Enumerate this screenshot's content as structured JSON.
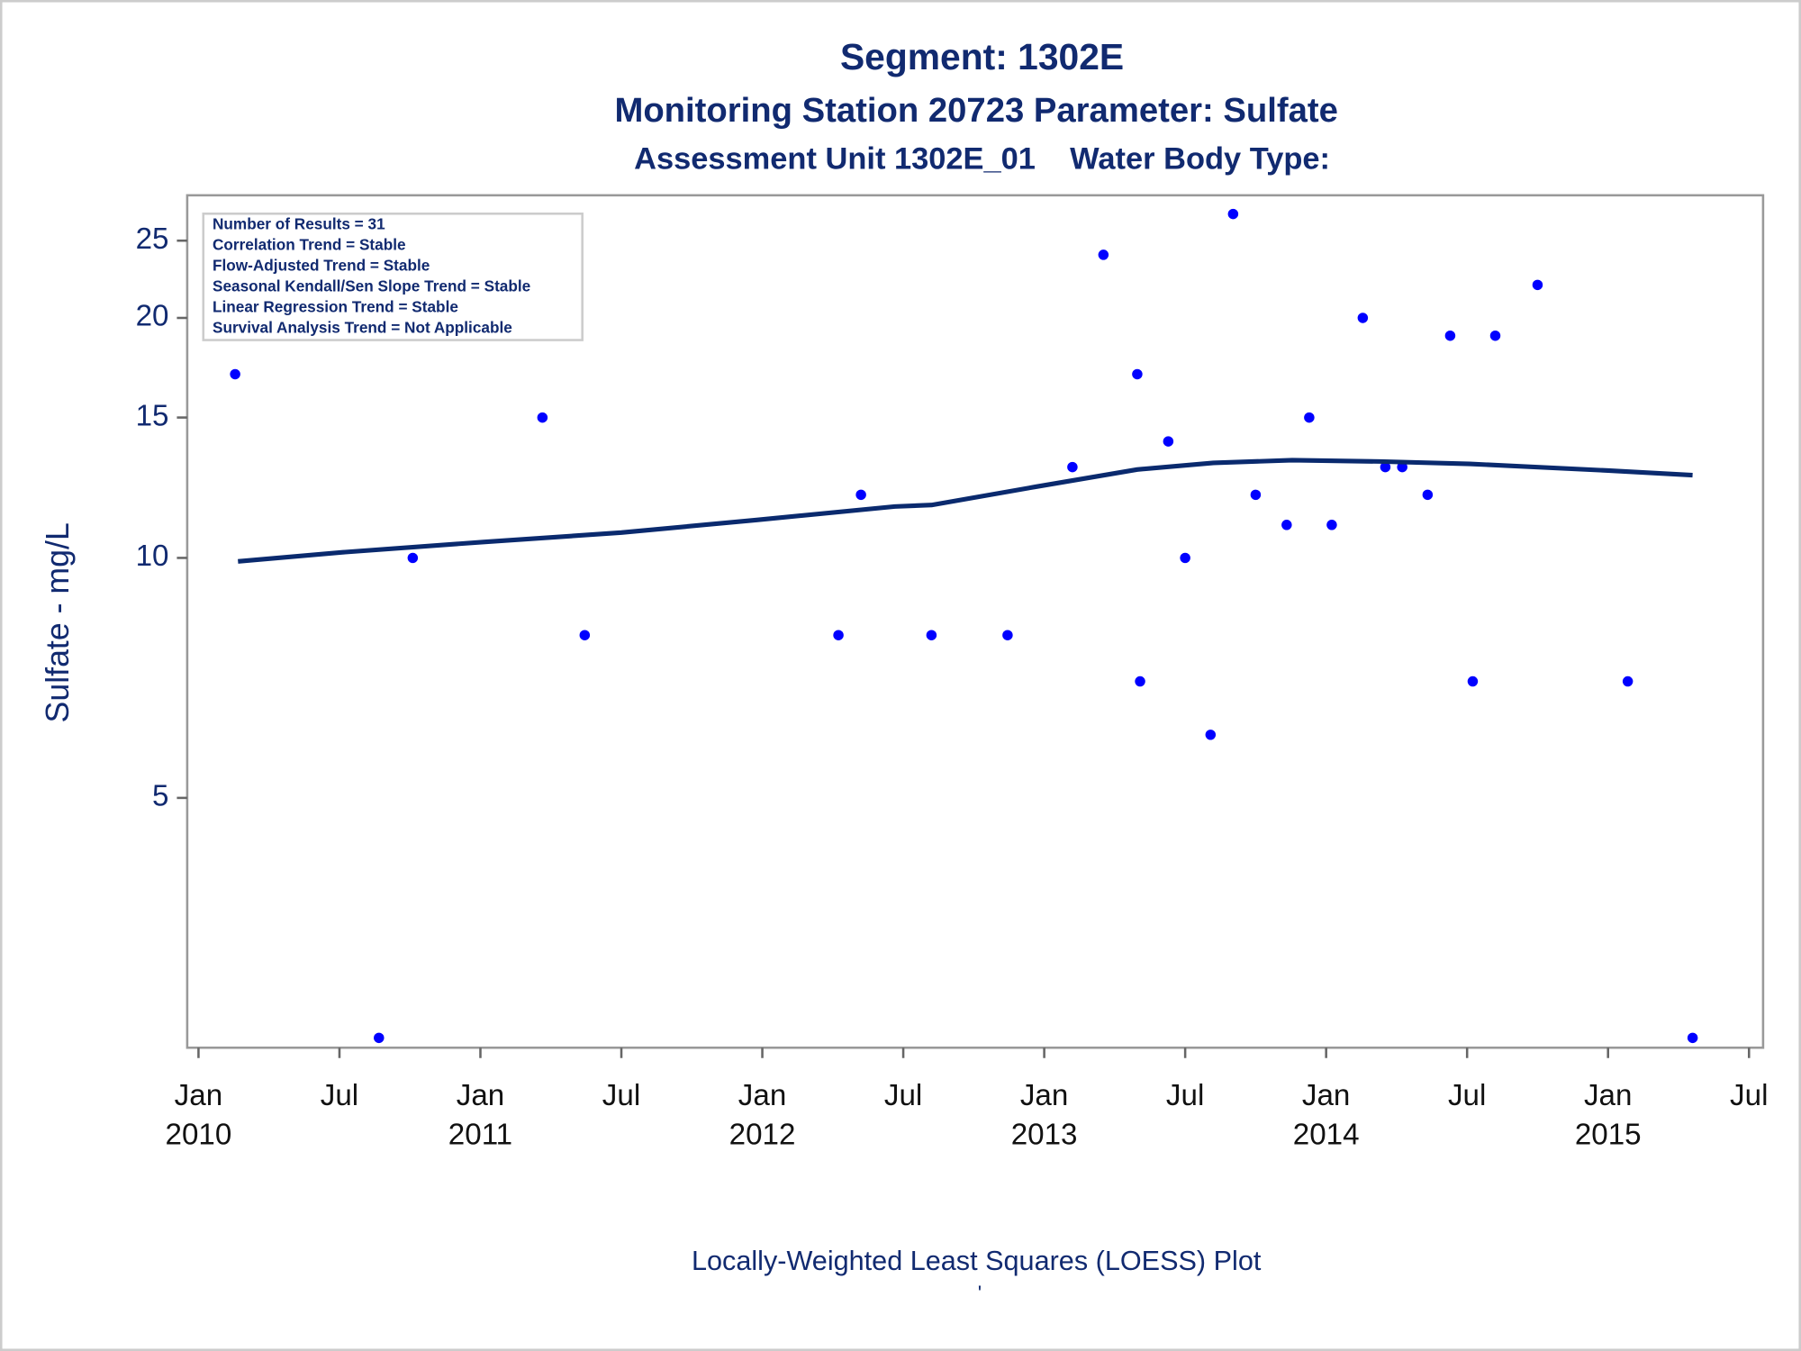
{
  "chart_data": {
    "type": "scatter",
    "title": "Segment: 1302E",
    "subtitle": "Monitoring Station 20723 Parameter: Sulfate",
    "subtitle2": "Assessment Unit 1302E_01    Water Body Type:",
    "ylabel": "Sulfate - mg/L",
    "annotations": [
      "Number of Results = 31",
      "Correlation Trend = Stable",
      "Flow-Adjusted Trend = Stable",
      "Seasonal Kendall/Sen Slope Trend = Stable",
      "Linear Regression Trend = Stable",
      "Survival Analysis Trend = Not Applicable"
    ],
    "footnote": "Locally-Weighted Least Squares (LOESS) Plot",
    "footnote2": "'",
    "yscale": "log",
    "ylim": [
      2.43,
      28.5
    ],
    "yticks": [
      5,
      10,
      15,
      20,
      25
    ],
    "xlim": [
      2009.96,
      2015.55
    ],
    "xticks": [
      {
        "value": 2010,
        "label": "Jan 2010"
      },
      {
        "value": 2010.5,
        "label": "Jul"
      },
      {
        "value": 2011,
        "label": "Jan 2011"
      },
      {
        "value": 2011.5,
        "label": "Jul"
      },
      {
        "value": 2012,
        "label": "Jan 2012"
      },
      {
        "value": 2012.5,
        "label": "Jul"
      },
      {
        "value": 2013,
        "label": "Jan 2013"
      },
      {
        "value": 2013.5,
        "label": "Jul"
      },
      {
        "value": 2014,
        "label": "Jan 2014"
      },
      {
        "value": 2014.5,
        "label": "Jul"
      },
      {
        "value": 2015,
        "label": "Jan 2015"
      },
      {
        "value": 2015.5,
        "label": "Jul"
      }
    ],
    "series": [
      {
        "type": "scatter",
        "color": "#0000ff",
        "x": [
          2010.13,
          2010.64,
          2010.76,
          2011.22,
          2011.37,
          2012.27,
          2012.35,
          2012.6,
          2012.87,
          2013.1,
          2013.21,
          2013.33,
          2013.34,
          2013.44,
          2013.5,
          2013.59,
          2013.67,
          2013.75,
          2013.86,
          2013.94,
          2014.02,
          2014.13,
          2014.21,
          2014.27,
          2014.36,
          2014.44,
          2014.52,
          2014.6,
          2014.75,
          2015.07,
          2015.3
        ],
        "values": [
          17,
          2.5,
          10,
          15,
          8,
          8,
          12,
          8,
          8,
          13,
          24,
          17,
          7,
          14,
          10,
          6,
          27,
          12,
          11,
          15,
          11,
          20,
          13,
          13,
          12,
          19,
          7,
          19,
          22,
          7,
          2.5
        ]
      },
      {
        "type": "line",
        "color": "#0a2a6e",
        "x": [
          2010.14,
          2010.52,
          2011.01,
          2011.5,
          2011.98,
          2012.47,
          2012.6,
          2012.97,
          2013.33,
          2013.6,
          2013.88,
          2014.19,
          2014.51,
          2015.0,
          2015.3
        ],
        "values": [
          9.9,
          10.17,
          10.47,
          10.76,
          11.16,
          11.6,
          11.65,
          12.28,
          12.91,
          13.16,
          13.26,
          13.21,
          13.12,
          12.87,
          12.7
        ]
      }
    ]
  }
}
